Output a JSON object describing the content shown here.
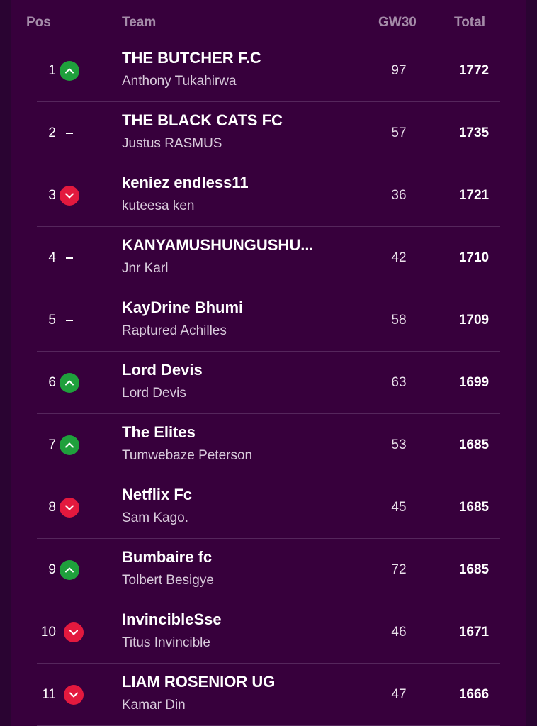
{
  "headers": {
    "pos": "Pos",
    "team": "Team",
    "gw": "GW30",
    "total": "Total"
  },
  "colors": {
    "background": "#37003c",
    "up": "#1fa03c",
    "down": "#e3193e"
  },
  "rows": [
    {
      "rank": "1",
      "movement": "up",
      "team": "THE BUTCHER F.C",
      "manager": "Anthony Tukahirwa",
      "gw": "97",
      "total": "1772"
    },
    {
      "rank": "2",
      "movement": "same",
      "team": "THE BLACK CATS FC",
      "manager": "Justus RASMUS",
      "gw": "57",
      "total": "1735"
    },
    {
      "rank": "3",
      "movement": "down",
      "team": "keniez endless11",
      "manager": "kuteesa ken",
      "gw": "36",
      "total": "1721"
    },
    {
      "rank": "4",
      "movement": "same",
      "team": "KANYAMUSHUNGUSHU...",
      "manager": "Jnr Karl",
      "gw": "42",
      "total": "1710"
    },
    {
      "rank": "5",
      "movement": "same",
      "team": "KayDrine Bhumi",
      "manager": "Raptured Achilles",
      "gw": "58",
      "total": "1709"
    },
    {
      "rank": "6",
      "movement": "up",
      "team": "Lord Devis",
      "manager": "Lord Devis",
      "gw": "63",
      "total": "1699"
    },
    {
      "rank": "7",
      "movement": "up",
      "team": "The Elites",
      "manager": "Tumwebaze Peterson",
      "gw": "53",
      "total": "1685"
    },
    {
      "rank": "8",
      "movement": "down",
      "team": "Netflix Fc",
      "manager": "Sam Kago.",
      "gw": "45",
      "total": "1685"
    },
    {
      "rank": "9",
      "movement": "up",
      "team": "Bumbaire fc",
      "manager": "Tolbert Besigye",
      "gw": "72",
      "total": "1685"
    },
    {
      "rank": "10",
      "movement": "down",
      "team": "InvincibleSse",
      "manager": "Titus Invincible",
      "gw": "46",
      "total": "1671"
    },
    {
      "rank": "11",
      "movement": "down",
      "team": "LIAM ROSENIOR UG",
      "manager": "Kamar Din",
      "gw": "47",
      "total": "1666"
    }
  ]
}
